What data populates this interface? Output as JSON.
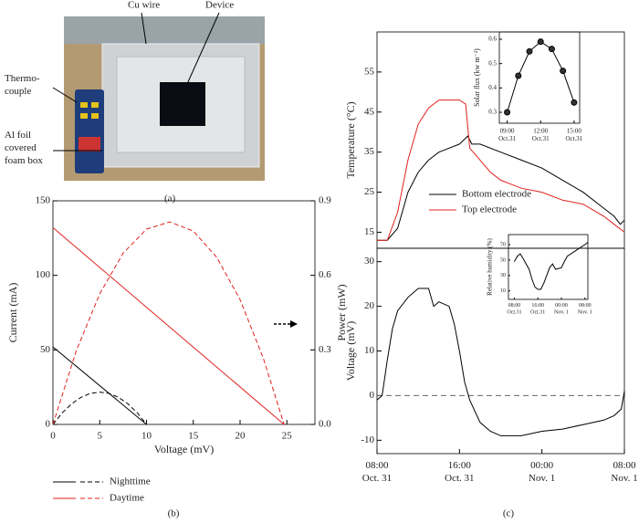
{
  "panel_a": {
    "labels": {
      "cu_wire": "Cu wire",
      "device": "Device",
      "thermocouple": [
        "Thermo-",
        "couple"
      ],
      "foil_box": [
        "Al foil",
        "covered",
        "foam box"
      ]
    },
    "caption": "(a)"
  },
  "chart_data": [
    {
      "type": "line",
      "caption": "(b)",
      "xlabel": "Voltage (mV)",
      "ylabel": "Current (mA)",
      "y2label": "Power (mW)",
      "xlim": [
        0,
        28
      ],
      "xticks": [
        0,
        5,
        10,
        15,
        20,
        25
      ],
      "ylim": [
        0,
        150
      ],
      "yticks": [
        0,
        50,
        100,
        150
      ],
      "y2lim": [
        0,
        0.9
      ],
      "y2ticks": [
        {
          "value": 0,
          "label": "0.0"
        },
        0.3,
        0.6,
        0.9
      ],
      "legend": [
        {
          "name": "Nighttime",
          "color": "#000000"
        },
        {
          "name": "Daytime",
          "color": "#e0211d"
        }
      ],
      "series": [
        {
          "color": "#000000",
          "dashed": false,
          "x": [
            0,
            10
          ],
          "values": [
            52,
            0
          ]
        },
        {
          "color": "#e0211d",
          "dashed": false,
          "x": [
            0,
            24.7
          ],
          "values": [
            132,
            0
          ]
        },
        {
          "color": "#000000",
          "dashed": true,
          "axis": "y2",
          "x": [
            0,
            1,
            2,
            3,
            4,
            5,
            6,
            7,
            8,
            9,
            10
          ],
          "values": [
            0,
            0.047,
            0.083,
            0.109,
            0.125,
            0.13,
            0.125,
            0.109,
            0.083,
            0.047,
            0
          ]
        },
        {
          "color": "#e0211d",
          "dashed": true,
          "axis": "y2",
          "x": [
            0,
            2.5,
            5,
            7.5,
            10,
            12.5,
            15,
            17.5,
            20,
            22.5,
            24.7
          ],
          "values": [
            0,
            0.297,
            0.526,
            0.689,
            0.786,
            0.815,
            0.778,
            0.673,
            0.502,
            0.265,
            0
          ]
        }
      ]
    },
    {
      "type": "line",
      "ylabel": "Temperature (°C)",
      "xlim": [
        0,
        24
      ],
      "ylim": [
        11,
        65
      ],
      "yticks": [
        15,
        25,
        35,
        45,
        55
      ],
      "series": [
        {
          "name": "Bottom electrode",
          "color": "#000000",
          "x": [
            0,
            1,
            2,
            3,
            4,
            5,
            6,
            7,
            8,
            8.8,
            9.2,
            10,
            12,
            14,
            16,
            18,
            20,
            22,
            23,
            23.6,
            24
          ],
          "values": [
            13,
            13,
            16,
            25,
            30,
            33,
            35,
            36,
            37,
            39,
            37,
            37,
            35,
            33,
            31,
            28,
            25,
            21,
            19,
            17,
            18
          ]
        },
        {
          "name": "Top electrode",
          "color": "#e0211d",
          "x": [
            0,
            1,
            2,
            3,
            4,
            5,
            6,
            7,
            8,
            8.6,
            9,
            10,
            11,
            12,
            13,
            14,
            16,
            18,
            20,
            22,
            23,
            24
          ],
          "values": [
            13,
            13,
            20,
            33,
            42,
            46,
            48,
            48,
            48,
            47,
            36,
            33,
            30,
            28,
            27,
            26,
            25,
            23,
            22,
            19,
            17,
            15
          ]
        }
      ]
    },
    {
      "type": "line",
      "ylabel": "Voltage (mV)",
      "xlim": [
        0,
        24
      ],
      "ylim": [
        -13,
        33
      ],
      "yticks": [
        -10,
        0,
        10,
        20,
        30
      ],
      "xticks": [
        {
          "value": 0,
          "label": [
            "08:00",
            "Oct. 31"
          ]
        },
        {
          "value": 8,
          "label": [
            "16:00",
            "Oct. 31"
          ]
        },
        {
          "value": 16,
          "label": [
            "00:00",
            "Nov. 1"
          ]
        },
        {
          "value": 24,
          "label": [
            "08:00",
            "Nov. 1"
          ]
        }
      ],
      "reference_line": 0,
      "caption": "(c)",
      "series": [
        {
          "color": "#000000",
          "x": [
            0,
            0.5,
            1,
            1.5,
            2,
            3,
            4,
            5,
            5.5,
            6,
            7,
            7.5,
            8,
            8.5,
            9,
            10,
            11,
            12,
            13,
            14,
            16,
            18,
            20,
            22,
            23,
            23.7,
            24
          ],
          "values": [
            -1,
            0,
            8,
            15,
            19,
            22,
            24,
            24,
            20,
            21,
            20,
            16,
            10,
            3,
            -1,
            -6,
            -8,
            -9,
            -9,
            -9,
            -8,
            -7.5,
            -6.5,
            -5.5,
            -4.5,
            -3,
            1
          ]
        }
      ]
    },
    {
      "type": "line",
      "ylabel": "Solar flux (kw m⁻²)",
      "xlim": [
        8.3,
        15.5
      ],
      "ylim": [
        0.255,
        0.63
      ],
      "yticks": [
        0.3,
        0.4,
        0.5,
        0.6
      ],
      "xticks": [
        {
          "value": 9,
          "label": [
            "09:00",
            "Oct.31"
          ]
        },
        {
          "value": 12,
          "label": [
            "12:00",
            "Oct.31"
          ]
        },
        {
          "value": 15,
          "label": [
            "15:00",
            "Oct.31"
          ]
        }
      ],
      "markers": true,
      "series": [
        {
          "color": "#000000",
          "x": [
            9,
            10,
            11,
            12,
            13,
            14,
            15
          ],
          "values": [
            0.3,
            0.45,
            0.55,
            0.59,
            0.56,
            0.47,
            0.34
          ]
        }
      ]
    },
    {
      "type": "line",
      "ylabel": "Relative humidity (%)",
      "xlim": [
        -2,
        25
      ],
      "ylim": [
        -1,
        83
      ],
      "yticks": [
        10,
        30,
        50,
        70
      ],
      "xticks": [
        {
          "value": 0,
          "label": [
            "08:00",
            "Oct.31"
          ]
        },
        {
          "value": 8,
          "label": [
            "16:00",
            "Oct.31"
          ]
        },
        {
          "value": 16,
          "label": [
            "00:00",
            "Nov. 1"
          ]
        },
        {
          "value": 24,
          "label": [
            "08:00",
            "Nov. 1"
          ]
        }
      ],
      "series": [
        {
          "color": "#000000",
          "x": [
            0,
            1,
            2,
            3,
            4,
            5,
            6,
            7,
            8,
            9,
            10,
            11,
            12,
            13,
            14,
            16,
            17,
            18,
            20,
            22,
            24,
            25
          ],
          "values": [
            48,
            55,
            58,
            52,
            45,
            38,
            25,
            15,
            12,
            12,
            20,
            30,
            40,
            45,
            38,
            40,
            48,
            55,
            60,
            65,
            70,
            73
          ]
        }
      ]
    }
  ]
}
